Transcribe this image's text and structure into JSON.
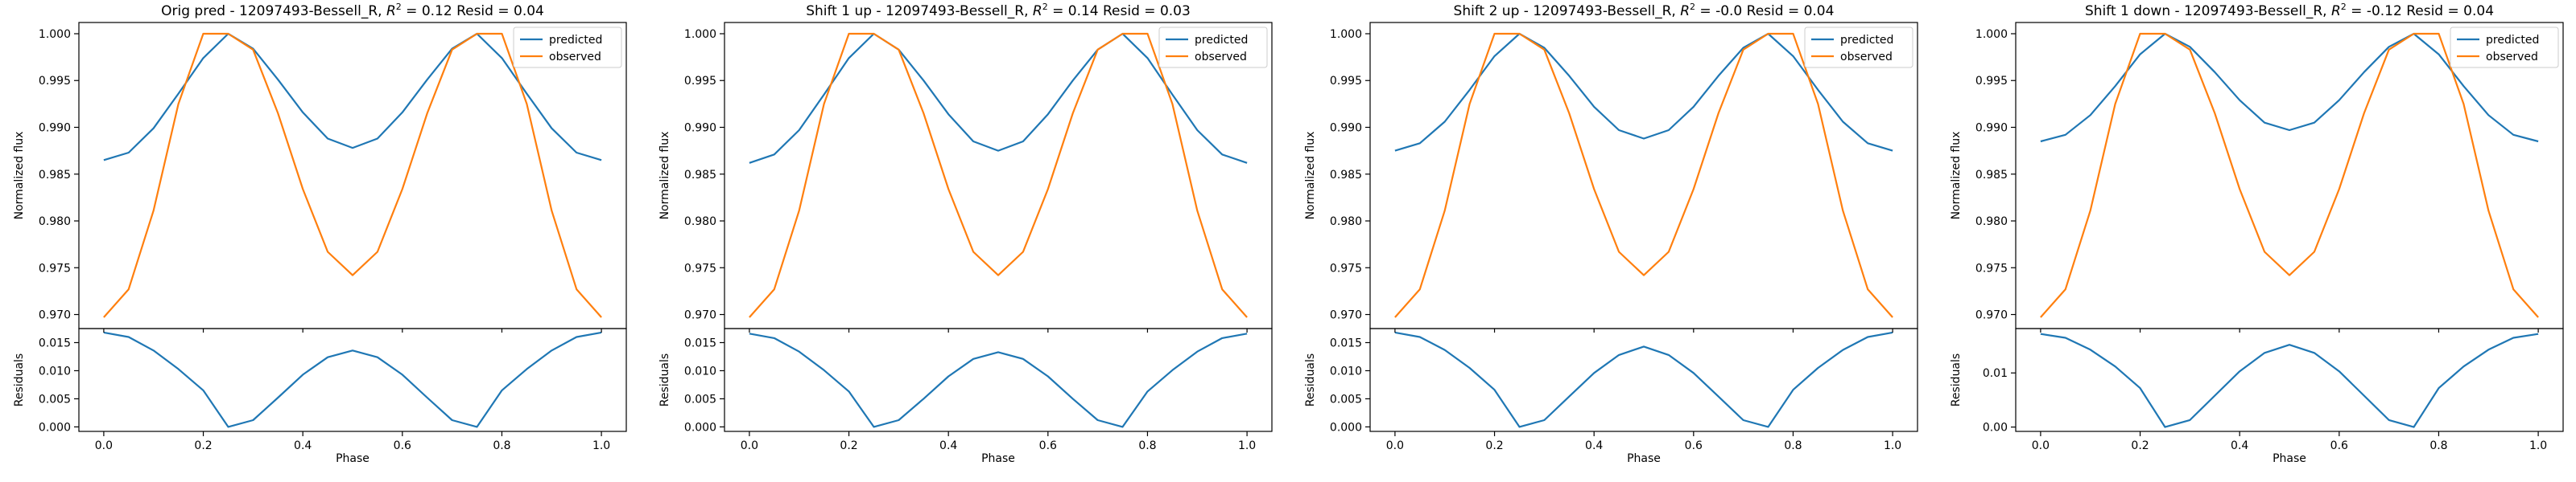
{
  "figure": {
    "colors": {
      "predicted": "#1f77b4",
      "observed": "#ff7f0e",
      "axes": "#000000",
      "background": "#ffffff"
    }
  },
  "chart_data": [
    {
      "type": "line",
      "title": "Orig pred - 12097493-Bessell_R, R² = 0.12 Resid = 0.04",
      "title_parts": {
        "prefix": "Orig pred - 12097493-Bessell_R, ",
        "r": "R",
        "sup": "2",
        "suffix": " = 0.12 Resid = 0.04"
      },
      "legend": {
        "placement": "top-right",
        "entries": [
          "predicted",
          "observed"
        ]
      },
      "top": {
        "ylabel": "Normalized flux",
        "ylim": [
          0.9685,
          1.0012
        ],
        "yticks": [
          0.97,
          0.975,
          0.98,
          0.985,
          0.99,
          0.995,
          1.0
        ],
        "ytick_labels": [
          "0.970",
          "0.975",
          "0.980",
          "0.985",
          "0.990",
          "0.995",
          "1.000"
        ],
        "series": [
          {
            "name": "predicted",
            "color": "#1f77b4",
            "x": [
              0.0,
              0.05,
              0.1,
              0.15,
              0.2,
              0.25,
              0.3,
              0.35,
              0.4,
              0.45,
              0.5,
              0.55,
              0.6,
              0.65,
              0.7,
              0.75,
              0.8,
              0.85,
              0.9,
              0.95,
              1.0
            ],
            "y": [
              0.9865,
              0.9873,
              0.9899,
              0.9936,
              0.9974,
              1.0,
              0.9984,
              0.9951,
              0.9916,
              0.9888,
              0.9878,
              0.9888,
              0.9916,
              0.9951,
              0.9984,
              1.0,
              0.9974,
              0.9936,
              0.9899,
              0.9873,
              0.9865
            ]
          },
          {
            "name": "observed",
            "color": "#ff7f0e",
            "x": [
              0.0,
              0.05,
              0.1,
              0.15,
              0.2,
              0.25,
              0.3,
              0.35,
              0.4,
              0.45,
              0.5,
              0.55,
              0.6,
              0.65,
              0.7,
              0.75,
              0.8,
              0.85,
              0.9,
              0.95,
              1.0
            ],
            "y": [
              0.9697,
              0.9727,
              0.9811,
              0.9925,
              1.0,
              1.0,
              0.9983,
              0.9915,
              0.9834,
              0.9767,
              0.9742,
              0.9767,
              0.9834,
              0.9915,
              0.9983,
              1.0,
              1.0,
              0.9925,
              0.9811,
              0.9727,
              0.9697
            ]
          }
        ]
      },
      "bottom": {
        "ylabel": "Residuals",
        "xlabel": "Phase",
        "ylim": [
          -0.0008,
          0.0175
        ],
        "yticks": [
          0.0,
          0.005,
          0.01,
          0.015
        ],
        "ytick_labels": [
          "0.000",
          "0.005",
          "0.010",
          "0.015"
        ],
        "series": [
          {
            "name": "residuals",
            "color": "#1f77b4",
            "x": [
              0.0,
              0.05,
              0.1,
              0.15,
              0.2,
              0.25,
              0.3,
              0.35,
              0.4,
              0.45,
              0.5,
              0.55,
              0.6,
              0.65,
              0.7,
              0.75,
              0.8,
              0.85,
              0.9,
              0.95,
              1.0
            ],
            "y": [
              0.0168,
              0.016,
              0.0136,
              0.0103,
              0.0065,
              0.0,
              0.0012,
              0.0052,
              0.0093,
              0.0124,
              0.0136,
              0.0124,
              0.0093,
              0.0052,
              0.0012,
              0.0,
              0.0065,
              0.0103,
              0.0136,
              0.016,
              0.0168
            ]
          }
        ]
      },
      "xlim": [
        -0.05,
        1.05
      ],
      "xticks": [
        0.0,
        0.2,
        0.4,
        0.6,
        0.8,
        1.0
      ],
      "xtick_labels": [
        "0.0",
        "0.2",
        "0.4",
        "0.6",
        "0.8",
        "1.0"
      ]
    },
    {
      "type": "line",
      "title": "Shift 1 up - 12097493-Bessell_R, R² = 0.14 Resid = 0.03",
      "title_parts": {
        "prefix": "Shift 1 up - 12097493-Bessell_R, ",
        "r": "R",
        "sup": "2",
        "suffix": " = 0.14 Resid = 0.03"
      },
      "legend": {
        "placement": "top-right",
        "entries": [
          "predicted",
          "observed"
        ]
      },
      "top": {
        "ylabel": "Normalized flux",
        "ylim": [
          0.9685,
          1.0012
        ],
        "yticks": [
          0.97,
          0.975,
          0.98,
          0.985,
          0.99,
          0.995,
          1.0
        ],
        "ytick_labels": [
          "0.970",
          "0.975",
          "0.980",
          "0.985",
          "0.990",
          "0.995",
          "1.000"
        ],
        "series": [
          {
            "name": "predicted",
            "color": "#1f77b4",
            "x": [
              0.0,
              0.05,
              0.1,
              0.15,
              0.2,
              0.25,
              0.3,
              0.35,
              0.4,
              0.45,
              0.5,
              0.55,
              0.6,
              0.65,
              0.7,
              0.75,
              0.8,
              0.85,
              0.9,
              0.95,
              1.0
            ],
            "y": [
              0.9862,
              0.9871,
              0.9897,
              0.9935,
              0.9974,
              1.0,
              0.9983,
              0.995,
              0.9914,
              0.9885,
              0.9875,
              0.9885,
              0.9914,
              0.995,
              0.9983,
              1.0,
              0.9974,
              0.9935,
              0.9897,
              0.9871,
              0.9862
            ]
          },
          {
            "name": "observed",
            "color": "#ff7f0e",
            "x": [
              0.0,
              0.05,
              0.1,
              0.15,
              0.2,
              0.25,
              0.3,
              0.35,
              0.4,
              0.45,
              0.5,
              0.55,
              0.6,
              0.65,
              0.7,
              0.75,
              0.8,
              0.85,
              0.9,
              0.95,
              1.0
            ],
            "y": [
              0.9697,
              0.9727,
              0.9811,
              0.9925,
              1.0,
              1.0,
              0.9983,
              0.9915,
              0.9834,
              0.9767,
              0.9742,
              0.9767,
              0.9834,
              0.9915,
              0.9983,
              1.0,
              1.0,
              0.9925,
              0.9811,
              0.9727,
              0.9697
            ]
          }
        ]
      },
      "bottom": {
        "ylabel": "Residuals",
        "xlabel": "Phase",
        "ylim": [
          -0.0008,
          0.0175
        ],
        "yticks": [
          0.0,
          0.005,
          0.01,
          0.015
        ],
        "ytick_labels": [
          "0.000",
          "0.005",
          "0.010",
          "0.015"
        ],
        "series": [
          {
            "name": "residuals",
            "color": "#1f77b4",
            "x": [
              0.0,
              0.05,
              0.1,
              0.15,
              0.2,
              0.25,
              0.3,
              0.35,
              0.4,
              0.45,
              0.5,
              0.55,
              0.6,
              0.65,
              0.7,
              0.75,
              0.8,
              0.85,
              0.9,
              0.95,
              1.0
            ],
            "y": [
              0.0166,
              0.0158,
              0.0134,
              0.0101,
              0.0063,
              0.0,
              0.0012,
              0.005,
              0.009,
              0.0121,
              0.0133,
              0.0121,
              0.009,
              0.005,
              0.0012,
              0.0,
              0.0063,
              0.0101,
              0.0134,
              0.0158,
              0.0166
            ]
          }
        ]
      },
      "xlim": [
        -0.05,
        1.05
      ],
      "xticks": [
        0.0,
        0.2,
        0.4,
        0.6,
        0.8,
        1.0
      ],
      "xtick_labels": [
        "0.0",
        "0.2",
        "0.4",
        "0.6",
        "0.8",
        "1.0"
      ]
    },
    {
      "type": "line",
      "title": "Shift 2 up - 12097493-Bessell_R, R² = -0.0 Resid = 0.04",
      "title_parts": {
        "prefix": "Shift 2 up - 12097493-Bessell_R, ",
        "r": "R",
        "sup": "2",
        "suffix": " = -0.0 Resid = 0.04"
      },
      "legend": {
        "placement": "top-right",
        "entries": [
          "predicted",
          "observed"
        ]
      },
      "top": {
        "ylabel": "Normalized flux",
        "ylim": [
          0.9685,
          1.0012
        ],
        "yticks": [
          0.97,
          0.975,
          0.98,
          0.985,
          0.99,
          0.995,
          1.0
        ],
        "ytick_labels": [
          "0.970",
          "0.975",
          "0.980",
          "0.985",
          "0.990",
          "0.995",
          "1.000"
        ],
        "series": [
          {
            "name": "predicted",
            "color": "#1f77b4",
            "x": [
              0.0,
              0.05,
              0.1,
              0.15,
              0.2,
              0.25,
              0.3,
              0.35,
              0.4,
              0.45,
              0.5,
              0.55,
              0.6,
              0.65,
              0.7,
              0.75,
              0.8,
              0.85,
              0.9,
              0.95,
              1.0
            ],
            "y": [
              0.9875,
              0.9883,
              0.9906,
              0.994,
              0.9976,
              1.0,
              0.9985,
              0.9955,
              0.9922,
              0.9897,
              0.9888,
              0.9897,
              0.9922,
              0.9955,
              0.9985,
              1.0,
              0.9976,
              0.994,
              0.9906,
              0.9883,
              0.9875
            ]
          },
          {
            "name": "observed",
            "color": "#ff7f0e",
            "x": [
              0.0,
              0.05,
              0.1,
              0.15,
              0.2,
              0.25,
              0.3,
              0.35,
              0.4,
              0.45,
              0.5,
              0.55,
              0.6,
              0.65,
              0.7,
              0.75,
              0.8,
              0.85,
              0.9,
              0.95,
              1.0
            ],
            "y": [
              0.9697,
              0.9727,
              0.9811,
              0.9925,
              1.0,
              1.0,
              0.9983,
              0.9915,
              0.9834,
              0.9767,
              0.9742,
              0.9767,
              0.9834,
              0.9915,
              0.9983,
              1.0,
              1.0,
              0.9925,
              0.9811,
              0.9727,
              0.9697
            ]
          }
        ]
      },
      "bottom": {
        "ylabel": "Residuals",
        "xlabel": "Phase",
        "ylim": [
          -0.0008,
          0.0175
        ],
        "yticks": [
          0.0,
          0.005,
          0.01,
          0.015
        ],
        "ytick_labels": [
          "0.000",
          "0.005",
          "0.010",
          "0.015"
        ],
        "series": [
          {
            "name": "residuals",
            "color": "#1f77b4",
            "x": [
              0.0,
              0.05,
              0.1,
              0.15,
              0.2,
              0.25,
              0.3,
              0.35,
              0.4,
              0.45,
              0.5,
              0.55,
              0.6,
              0.65,
              0.7,
              0.75,
              0.8,
              0.85,
              0.9,
              0.95,
              1.0
            ],
            "y": [
              0.0168,
              0.016,
              0.0137,
              0.0105,
              0.0066,
              0.0,
              0.0012,
              0.0054,
              0.0096,
              0.0128,
              0.0143,
              0.0128,
              0.0096,
              0.0054,
              0.0012,
              0.0,
              0.0066,
              0.0105,
              0.0137,
              0.016,
              0.0168
            ]
          }
        ]
      },
      "xlim": [
        -0.05,
        1.05
      ],
      "xticks": [
        0.0,
        0.2,
        0.4,
        0.6,
        0.8,
        1.0
      ],
      "xtick_labels": [
        "0.0",
        "0.2",
        "0.4",
        "0.6",
        "0.8",
        "1.0"
      ]
    },
    {
      "type": "line",
      "title": "Shift 1 down - 12097493-Bessell_R, R² = -0.12 Resid = 0.04",
      "title_parts": {
        "prefix": "Shift 1 down - 12097493-Bessell_R, ",
        "r": "R",
        "sup": "2",
        "suffix": " = -0.12 Resid = 0.04"
      },
      "legend": {
        "placement": "top-right",
        "entries": [
          "predicted",
          "observed"
        ]
      },
      "top": {
        "ylabel": "Normalized flux",
        "ylim": [
          0.9685,
          1.0012
        ],
        "yticks": [
          0.97,
          0.975,
          0.98,
          0.985,
          0.99,
          0.995,
          1.0
        ],
        "ytick_labels": [
          "0.970",
          "0.975",
          "0.980",
          "0.985",
          "0.990",
          "0.995",
          "1.000"
        ],
        "series": [
          {
            "name": "predicted",
            "color": "#1f77b4",
            "x": [
              0.0,
              0.05,
              0.1,
              0.15,
              0.2,
              0.25,
              0.3,
              0.35,
              0.4,
              0.45,
              0.5,
              0.55,
              0.6,
              0.65,
              0.7,
              0.75,
              0.8,
              0.85,
              0.9,
              0.95,
              1.0
            ],
            "y": [
              0.9885,
              0.9892,
              0.9913,
              0.9944,
              0.9978,
              1.0,
              0.9986,
              0.9959,
              0.9929,
              0.9905,
              0.9897,
              0.9905,
              0.9929,
              0.9959,
              0.9986,
              1.0,
              0.9978,
              0.9944,
              0.9913,
              0.9892,
              0.9885
            ]
          },
          {
            "name": "observed",
            "color": "#ff7f0e",
            "x": [
              0.0,
              0.05,
              0.1,
              0.15,
              0.2,
              0.25,
              0.3,
              0.35,
              0.4,
              0.45,
              0.5,
              0.55,
              0.6,
              0.65,
              0.7,
              0.75,
              0.8,
              0.85,
              0.9,
              0.95,
              1.0
            ],
            "y": [
              0.9697,
              0.9727,
              0.9811,
              0.9925,
              1.0,
              1.0,
              0.9983,
              0.9915,
              0.9834,
              0.9767,
              0.9742,
              0.9767,
              0.9834,
              0.9915,
              0.9983,
              1.0,
              1.0,
              0.9925,
              0.9811,
              0.9727,
              0.9697
            ]
          }
        ]
      },
      "bottom": {
        "ylabel": "Residuals",
        "xlabel": "Phase",
        "ylim": [
          -0.0008,
          0.0182
        ],
        "yticks": [
          0.0,
          0.01
        ],
        "ytick_labels": [
          "0.00",
          "0.01"
        ],
        "series": [
          {
            "name": "residuals",
            "color": "#1f77b4",
            "x": [
              0.0,
              0.05,
              0.1,
              0.15,
              0.2,
              0.25,
              0.3,
              0.35,
              0.4,
              0.45,
              0.5,
              0.55,
              0.6,
              0.65,
              0.7,
              0.75,
              0.8,
              0.85,
              0.9,
              0.95,
              1.0
            ],
            "y": [
              0.0172,
              0.0165,
              0.0143,
              0.0112,
              0.0072,
              0.0,
              0.0013,
              0.0058,
              0.0103,
              0.0137,
              0.0152,
              0.0137,
              0.0103,
              0.0058,
              0.0013,
              0.0,
              0.0072,
              0.0112,
              0.0143,
              0.0165,
              0.0172
            ]
          }
        ]
      },
      "xlim": [
        -0.05,
        1.05
      ],
      "xticks": [
        0.0,
        0.2,
        0.4,
        0.6,
        0.8,
        1.0
      ],
      "xtick_labels": [
        "0.0",
        "0.2",
        "0.4",
        "0.6",
        "0.8",
        "1.0"
      ]
    }
  ]
}
